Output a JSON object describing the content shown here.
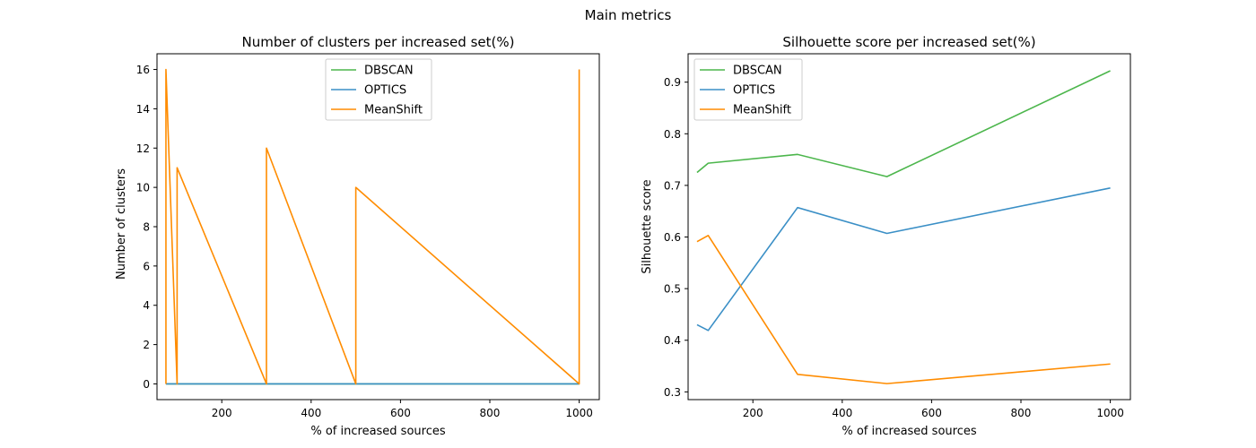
{
  "suptitle": "Main metrics",
  "chart_data": [
    {
      "type": "line",
      "title": "Number of clusters per increased set(%)",
      "xlabel": "% of increased sources",
      "ylabel": "Number of clusters",
      "xlim": [
        55,
        1045
      ],
      "ylim": [
        -0.8,
        16.8
      ],
      "xticks": [
        200,
        400,
        600,
        800,
        1000
      ],
      "yticks": [
        0,
        2,
        4,
        6,
        8,
        10,
        12,
        14,
        16
      ],
      "legend_position": "top-center",
      "series": [
        {
          "name": "DBSCAN",
          "color": "#4cb64c",
          "x": [
            75,
            75,
            100,
            100,
            300,
            300,
            500,
            500,
            1000,
            1000
          ],
          "y": [
            0,
            0,
            0,
            0,
            0,
            0,
            0,
            0,
            0,
            0
          ]
        },
        {
          "name": "OPTICS",
          "color": "#3a8fc6",
          "x": [
            75,
            75,
            100,
            100,
            300,
            300,
            500,
            500,
            1000,
            1000
          ],
          "y": [
            0,
            0,
            0,
            0,
            0,
            0,
            0,
            0,
            0,
            0
          ]
        },
        {
          "name": "MeanShift",
          "color": "#ff8c00",
          "x": [
            75,
            75,
            100,
            100,
            300,
            300,
            500,
            500,
            1000,
            1000
          ],
          "y": [
            0,
            16,
            0,
            11,
            0,
            12,
            0,
            10,
            0,
            16
          ]
        }
      ]
    },
    {
      "type": "line",
      "title": "Silhouette score per increased set(%)",
      "xlabel": "% of increased sources",
      "ylabel": "Silhouette score",
      "xlim": [
        55,
        1045
      ],
      "ylim": [
        0.285,
        0.955
      ],
      "xticks": [
        200,
        400,
        600,
        800,
        1000
      ],
      "yticks": [
        0.3,
        0.4,
        0.5,
        0.6,
        0.7,
        0.8,
        0.9
      ],
      "legend_position": "top-left",
      "series": [
        {
          "name": "DBSCAN",
          "color": "#4cb64c",
          "x": [
            75,
            100,
            300,
            500,
            1000
          ],
          "y": [
            0.725,
            0.743,
            0.76,
            0.717,
            0.922
          ]
        },
        {
          "name": "OPTICS",
          "color": "#3a8fc6",
          "x": [
            75,
            100,
            300,
            500,
            1000
          ],
          "y": [
            0.43,
            0.419,
            0.657,
            0.607,
            0.695
          ]
        },
        {
          "name": "MeanShift",
          "color": "#ff8c00",
          "x": [
            75,
            100,
            300,
            500,
            1000
          ],
          "y": [
            0.591,
            0.603,
            0.334,
            0.316,
            0.354
          ]
        }
      ]
    }
  ]
}
